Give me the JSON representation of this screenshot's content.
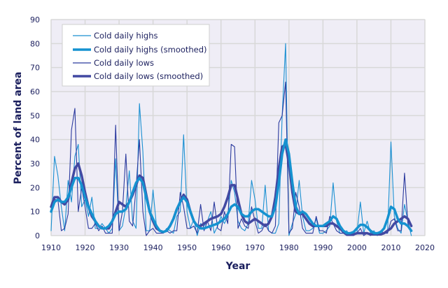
{
  "chart_data": {
    "type": "line",
    "title": "",
    "xlabel": "Year",
    "ylabel": "Percent of land area",
    "xlim": [
      1910,
      2020
    ],
    "ylim": [
      0,
      90
    ],
    "xticks": [
      1910,
      1920,
      1930,
      1940,
      1950,
      1960,
      1970,
      1980,
      1990,
      2000,
      2010,
      2020
    ],
    "yticks": [
      0,
      10,
      20,
      30,
      40,
      50,
      60,
      70,
      80,
      90
    ],
    "grid": true,
    "legend_position": "top-left",
    "x_start": 1910,
    "series": [
      {
        "name": "Cold daily highs",
        "color": "#1a8fd1",
        "style": "thin",
        "values": [
          2,
          33,
          25,
          12,
          2,
          23,
          14,
          33,
          38,
          12,
          15,
          8,
          16,
          3,
          3,
          5,
          3,
          1,
          3,
          32,
          2,
          4,
          12,
          27,
          6,
          3,
          55,
          35,
          2,
          2,
          19,
          4,
          2,
          1,
          3,
          2,
          1,
          8,
          10,
          42,
          10,
          3,
          7,
          0,
          5,
          4,
          6,
          10,
          1,
          4,
          8,
          5,
          8,
          23,
          18,
          6,
          3,
          2,
          5,
          23,
          15,
          3,
          3,
          21,
          2,
          1,
          1,
          5,
          50,
          80,
          0,
          5,
          9,
          23,
          8,
          2,
          2,
          3,
          7,
          1,
          1,
          2,
          4,
          22,
          6,
          1,
          1,
          2,
          0,
          1,
          1,
          14,
          1,
          6,
          1,
          2,
          0,
          1,
          1,
          1,
          39,
          8,
          3,
          1,
          13,
          6,
          0
        ]
      },
      {
        "name": "Cold daily highs (smoothed)",
        "color": "#1592d0",
        "style": "thick",
        "values": [
          10,
          14,
          15,
          14,
          14,
          16,
          20,
          24,
          24,
          21,
          16,
          12,
          9,
          6,
          4,
          3,
          3,
          4,
          6,
          9,
          10,
          10,
          11,
          14,
          18,
          22,
          24,
          22,
          16,
          10,
          7,
          4,
          2,
          1.5,
          2,
          4,
          7,
          11,
          14,
          16,
          14,
          10,
          6,
          4,
          3,
          3,
          3.5,
          4,
          4.5,
          5,
          6,
          7,
          9,
          12,
          13,
          12,
          9,
          8,
          8,
          10,
          11,
          11,
          10,
          9,
          8,
          8,
          12,
          22,
          34,
          40,
          34,
          22,
          12,
          9,
          10,
          9,
          7,
          5,
          4,
          4,
          4,
          5,
          6,
          8,
          7,
          4,
          2,
          1,
          1,
          1.5,
          3,
          4.5,
          4.5,
          3.5,
          2,
          1,
          1,
          1.5,
          3,
          7,
          12,
          11,
          7,
          5,
          5,
          4,
          2
        ]
      },
      {
        "name": "Cold daily lows",
        "color": "#2b3a9e",
        "style": "thin",
        "values": [
          12,
          15,
          15,
          2,
          3,
          9,
          44,
          53,
          10,
          20,
          12,
          3,
          3,
          5,
          2,
          4,
          1,
          1,
          1,
          46,
          2,
          10,
          34,
          6,
          4,
          20,
          40,
          10,
          0,
          2,
          3,
          1,
          1,
          1,
          2,
          1,
          2,
          2,
          18,
          12,
          3,
          3,
          4,
          1,
          13,
          2,
          6,
          2,
          14,
          3,
          2,
          10,
          5,
          38,
          37,
          3,
          7,
          4,
          3,
          12,
          6,
          1,
          2,
          5,
          2,
          1,
          4,
          47,
          50,
          64,
          1,
          3,
          18,
          12,
          3,
          1,
          1,
          1,
          8,
          2,
          2,
          1,
          8,
          5,
          2,
          1,
          1,
          0,
          0,
          0,
          1,
          3,
          0,
          1,
          0,
          1,
          1,
          2,
          1,
          1,
          6,
          7,
          2,
          2,
          26,
          5,
          2
        ]
      },
      {
        "name": "Cold daily lows (smoothed)",
        "color": "#4249a2",
        "style": "thick",
        "values": [
          12,
          16,
          16,
          14,
          13,
          15,
          22,
          28,
          30,
          25,
          18,
          12,
          8,
          6,
          4,
          3,
          3,
          3,
          6,
          10,
          14,
          13,
          12,
          14,
          17,
          21,
          25,
          24,
          17,
          10,
          6,
          3,
          2,
          1.5,
          2,
          4,
          7,
          11,
          14,
          17,
          15,
          10,
          6,
          4,
          4,
          5,
          6,
          7,
          7.5,
          8,
          9,
          12,
          16,
          21,
          21,
          15,
          9,
          6,
          5,
          6,
          7,
          6,
          5,
          4,
          5,
          8,
          16,
          28,
          37,
          38,
          30,
          18,
          10,
          9,
          9,
          7,
          5,
          4,
          4,
          4,
          4,
          4,
          5,
          5,
          4,
          3,
          1.5,
          0.5,
          0.5,
          0.5,
          1,
          1,
          1,
          1,
          0.5,
          0.5,
          0.5,
          0.5,
          1,
          2,
          3,
          5,
          6,
          7,
          8,
          7,
          4
        ]
      }
    ]
  }
}
